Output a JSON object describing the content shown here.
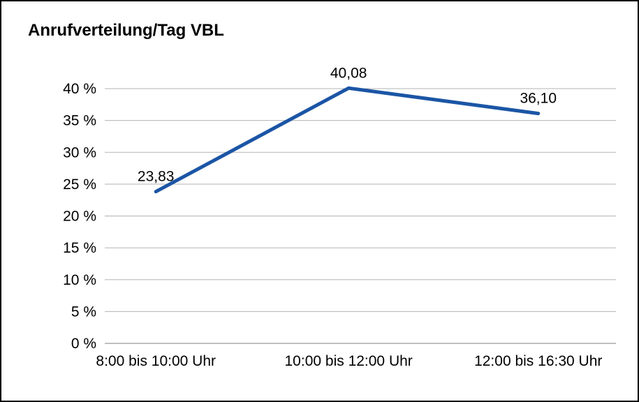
{
  "chart": {
    "title": "Anrufverteilung/Tag VBL"
  },
  "chart_data": {
    "type": "line",
    "title": "Anrufverteilung/Tag VBL",
    "categories": [
      "8:00 bis 10:00 Uhr",
      "10:00 bis 12:00 Uhr",
      "12:00 bis 16:30 Uhr"
    ],
    "series": [
      {
        "name": "Anrufverteilung/Tag VBL",
        "values": [
          23.83,
          40.08,
          36.1
        ]
      }
    ],
    "point_labels": [
      "23,83",
      "40,08",
      "36,10"
    ],
    "xlabel": "",
    "ylabel": "",
    "ylim": [
      0,
      40
    ],
    "ytick_step": 5,
    "ytick_labels": [
      "0 %",
      "5 %",
      "10 %",
      "15 %",
      "20 %",
      "25 %",
      "30 %",
      "35 %",
      "40 %"
    ],
    "grid": true,
    "legend": false,
    "colors": {
      "line": "#1b55a5",
      "gridline": "#b3b3b3",
      "axis": "#7f7f7f",
      "text": "#000000",
      "background": "#ffffff",
      "frame_border": "#000000"
    }
  }
}
